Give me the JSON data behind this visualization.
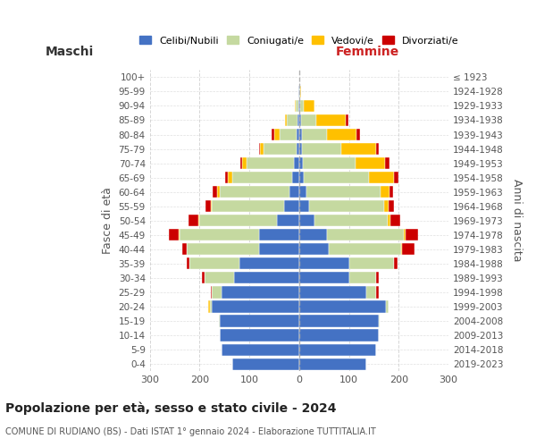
{
  "age_groups": [
    "0-4",
    "5-9",
    "10-14",
    "15-19",
    "20-24",
    "25-29",
    "30-34",
    "35-39",
    "40-44",
    "45-49",
    "50-54",
    "55-59",
    "60-64",
    "65-69",
    "70-74",
    "75-79",
    "80-84",
    "85-89",
    "90-94",
    "95-99",
    "100+"
  ],
  "birth_years": [
    "2019-2023",
    "2014-2018",
    "2009-2013",
    "2004-2008",
    "1999-2003",
    "1994-1998",
    "1989-1993",
    "1984-1988",
    "1979-1983",
    "1974-1978",
    "1969-1973",
    "1964-1968",
    "1959-1963",
    "1954-1958",
    "1949-1953",
    "1944-1948",
    "1939-1943",
    "1934-1938",
    "1929-1933",
    "1924-1928",
    "≤ 1923"
  ],
  "maschi": {
    "celibi": [
      135,
      155,
      160,
      160,
      175,
      155,
      130,
      120,
      80,
      80,
      45,
      30,
      20,
      15,
      10,
      6,
      5,
      4,
      2,
      1,
      0
    ],
    "coniugati": [
      0,
      0,
      0,
      2,
      5,
      20,
      60,
      100,
      145,
      160,
      155,
      145,
      140,
      120,
      95,
      65,
      35,
      20,
      5,
      1,
      0
    ],
    "vedovi": [
      0,
      0,
      0,
      0,
      2,
      0,
      0,
      0,
      1,
      2,
      2,
      3,
      5,
      8,
      10,
      8,
      10,
      5,
      2,
      0,
      0
    ],
    "divorziati": [
      0,
      0,
      0,
      0,
      0,
      2,
      5,
      5,
      8,
      20,
      20,
      10,
      8,
      5,
      3,
      2,
      5,
      0,
      0,
      0,
      0
    ]
  },
  "femmine": {
    "nubili": [
      135,
      155,
      160,
      160,
      175,
      135,
      100,
      100,
      60,
      55,
      30,
      20,
      15,
      10,
      8,
      5,
      5,
      4,
      2,
      1,
      0
    ],
    "coniugate": [
      0,
      0,
      0,
      2,
      5,
      20,
      55,
      90,
      145,
      155,
      148,
      150,
      148,
      130,
      105,
      80,
      50,
      30,
      8,
      1,
      0
    ],
    "vedove": [
      0,
      0,
      0,
      0,
      0,
      0,
      0,
      0,
      2,
      3,
      5,
      10,
      18,
      50,
      60,
      70,
      60,
      60,
      20,
      2,
      0
    ],
    "divorziate": [
      0,
      0,
      0,
      0,
      0,
      5,
      5,
      8,
      25,
      25,
      20,
      10,
      8,
      10,
      8,
      5,
      8,
      5,
      0,
      0,
      0
    ]
  },
  "colors": {
    "celibi": "#4472c4",
    "coniugati": "#c5d9a0",
    "vedovi": "#ffc000",
    "divorziati": "#cc0000"
  },
  "xlim": 300,
  "title": "Popolazione per età, sesso e stato civile - 2024",
  "subtitle": "COMUNE DI RUDIANO (BS) - Dati ISTAT 1° gennaio 2024 - Elaborazione TUTTITALIA.IT",
  "ylabel_left": "Fasce di età",
  "ylabel_right": "Anni di nascita",
  "xlabel_left": "Maschi",
  "xlabel_right": "Femmine",
  "legend_labels": [
    "Celibi/Nubili",
    "Coniugati/e",
    "Vedovi/e",
    "Divorziati/e"
  ],
  "bg_color": "#ffffff",
  "grid_color": "#cccccc"
}
